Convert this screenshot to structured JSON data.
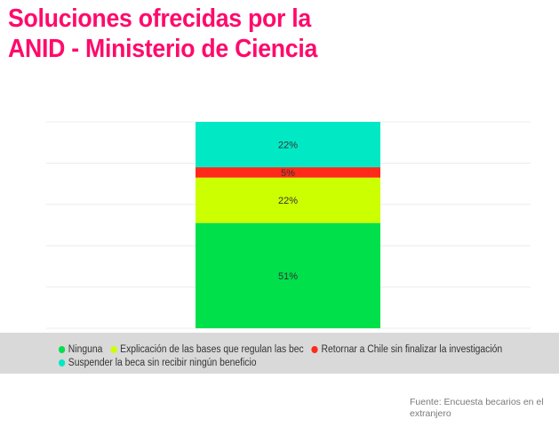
{
  "title_lines": [
    "Soluciones ofrecidas por la",
    "ANID - Ministerio de Ciencia"
  ],
  "chart_data": {
    "type": "bar",
    "stacked": true,
    "categories": [
      ""
    ],
    "ylim": [
      0,
      100
    ],
    "grid": true,
    "legend_placement": "bottom",
    "series": [
      {
        "name": "Ninguna",
        "values": [
          51
        ],
        "label": "51%",
        "color": "#00e04b"
      },
      {
        "name": "Explicación de las bases que regulan las bec",
        "values": [
          22
        ],
        "label": "22%",
        "color": "#ccff00"
      },
      {
        "name": "Retornar a Chile sin finalizar la investigación",
        "values": [
          5
        ],
        "label": "5%",
        "color": "#ff2a1a"
      },
      {
        "name": "Suspender la beca sin recibir ningún beneficio",
        "values": [
          22
        ],
        "label": "22%",
        "color": "#00e8c4"
      }
    ]
  },
  "source_text": "Fuente: Encuesta becarios en el extranjero"
}
